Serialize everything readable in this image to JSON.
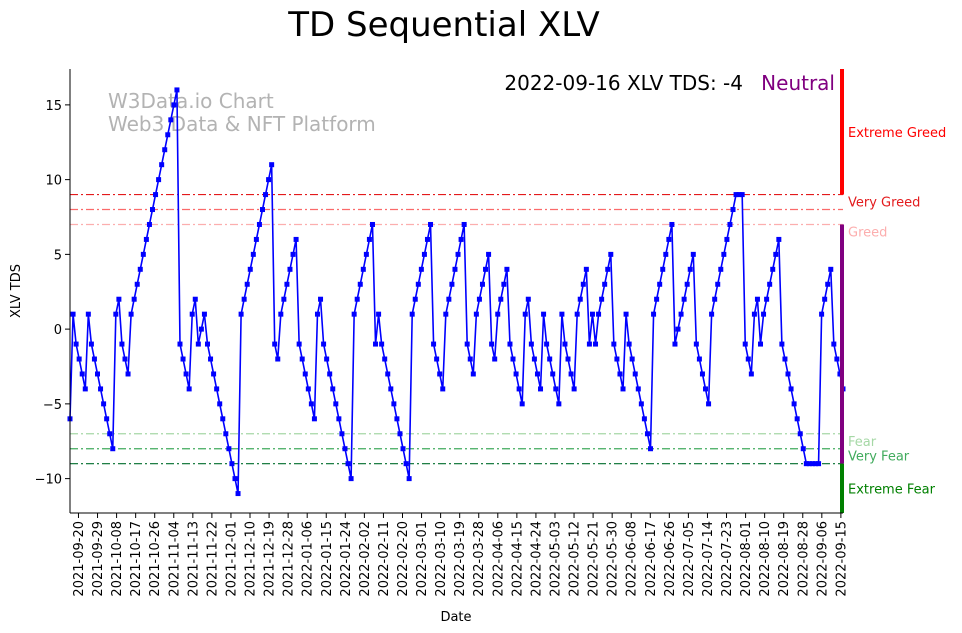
{
  "chart_data": {
    "type": "line",
    "title": "TD Sequential XLV",
    "status_text": "2022-09-16 XLV TDS: -4",
    "status_label": "Neutral",
    "watermark": [
      "W3Data.io Chart",
      "Web3 Data & NFT Platform"
    ],
    "xlabel": "Date",
    "ylabel": "XLV TDS",
    "ylim": [
      -12.3,
      17.4
    ],
    "yticks": [
      -10,
      -5,
      0,
      5,
      10,
      15
    ],
    "x_start": "2021-09-16",
    "x_end": "2022-09-16",
    "xtick_labels": [
      "2021-09-20",
      "2021-09-29",
      "2021-10-08",
      "2021-10-17",
      "2021-10-26",
      "2021-11-04",
      "2021-11-13",
      "2021-11-22",
      "2021-12-01",
      "2021-12-10",
      "2021-12-19",
      "2021-12-28",
      "2022-01-06",
      "2022-01-15",
      "2022-01-24",
      "2022-02-02",
      "2022-02-11",
      "2022-02-20",
      "2022-03-01",
      "2022-03-10",
      "2022-03-19",
      "2022-03-28",
      "2022-04-06",
      "2022-04-15",
      "2022-04-24",
      "2022-05-03",
      "2022-05-12",
      "2022-05-21",
      "2022-05-30",
      "2022-06-08",
      "2022-06-17",
      "2022-06-26",
      "2022-07-05",
      "2022-07-14",
      "2022-07-23",
      "2022-08-01",
      "2022-08-10",
      "2022-08-19",
      "2022-08-28",
      "2022-09-06",
      "2022-09-15"
    ],
    "series": [
      {
        "color": "#0000ff",
        "values": [
          -6,
          1,
          -1,
          -2,
          -3,
          -4,
          1,
          -1,
          -2,
          -3,
          -4,
          -5,
          -6,
          -7,
          -8,
          1,
          2,
          -1,
          -2,
          -3,
          1,
          2,
          3,
          4,
          5,
          6,
          7,
          8,
          9,
          10,
          11,
          12,
          13,
          14,
          15,
          16,
          -1,
          -2,
          -3,
          -4,
          1,
          2,
          -1,
          0,
          1,
          -1,
          -2,
          -3,
          -4,
          -5,
          -6,
          -7,
          -8,
          -9,
          -10,
          -11,
          1,
          2,
          3,
          4,
          5,
          6,
          7,
          8,
          9,
          10,
          11,
          -1,
          -2,
          1,
          2,
          3,
          4,
          5,
          6,
          -1,
          -2,
          -3,
          -4,
          -5,
          -6,
          1,
          2,
          -1,
          -2,
          -3,
          -4,
          -5,
          -6,
          -7,
          -8,
          -9,
          -10,
          1,
          2,
          3,
          4,
          5,
          6,
          7,
          -1,
          1,
          -1,
          -2,
          -3,
          -4,
          -5,
          -6,
          -7,
          -8,
          -9,
          -10,
          1,
          2,
          3,
          4,
          5,
          6,
          7,
          -1,
          -2,
          -3,
          -4,
          1,
          2,
          3,
          4,
          5,
          6,
          7,
          -1,
          -2,
          -3,
          1,
          2,
          3,
          4,
          5,
          -1,
          -2,
          1,
          2,
          3,
          4,
          -1,
          -2,
          -3,
          -4,
          -5,
          1,
          2,
          -1,
          -2,
          -3,
          -4,
          1,
          -1,
          -2,
          -3,
          -4,
          -5,
          1,
          -1,
          -2,
          -3,
          -4,
          1,
          2,
          3,
          4,
          -1,
          1,
          -1,
          1,
          2,
          3,
          4,
          5,
          -1,
          -2,
          -3,
          -4,
          1,
          -1,
          -2,
          -3,
          -4,
          -5,
          -6,
          -7,
          -8,
          1,
          2,
          3,
          4,
          5,
          6,
          7,
          -1,
          0,
          1,
          2,
          3,
          4,
          5,
          -1,
          -2,
          -3,
          -4,
          -5,
          1,
          2,
          3,
          4,
          5,
          6,
          7,
          8,
          9,
          9,
          9,
          -1,
          -2,
          -3,
          1,
          2,
          -1,
          1,
          2,
          3,
          4,
          5,
          6,
          -1,
          -2,
          -3,
          -4,
          -5,
          -6,
          -7,
          -8,
          -9,
          -9,
          -9,
          -9,
          -9,
          1,
          2,
          3,
          4,
          -1,
          -2,
          -3,
          -4
        ]
      }
    ],
    "hlines": [
      {
        "y": 9,
        "color": "#e31a1c",
        "style": "dashdot",
        "label": "Very Greed"
      },
      {
        "y": 8,
        "color": "#fb6a6a",
        "style": "dashdot",
        "label": ""
      },
      {
        "y": 7,
        "color": "#fcaeae",
        "style": "dashdot",
        "label": "Greed"
      },
      {
        "y": -7,
        "color": "#a6d8a6",
        "style": "dashdot",
        "label": "Fear"
      },
      {
        "y": -8,
        "color": "#41ab5d",
        "style": "dashdot",
        "label": "Very Fear"
      },
      {
        "y": -9,
        "color": "#006d2c",
        "style": "dashdot",
        "label": ""
      }
    ],
    "side_bands": [
      {
        "from": 9,
        "to": 17.4,
        "color": "#ff0000",
        "label": "Extreme Greed"
      },
      {
        "from": -9,
        "to": 7,
        "color": "#800080",
        "label": ""
      },
      {
        "from": -12.3,
        "to": -9,
        "color": "#008000",
        "label": "Extreme Fear"
      }
    ],
    "grid": false,
    "legend": "none"
  }
}
